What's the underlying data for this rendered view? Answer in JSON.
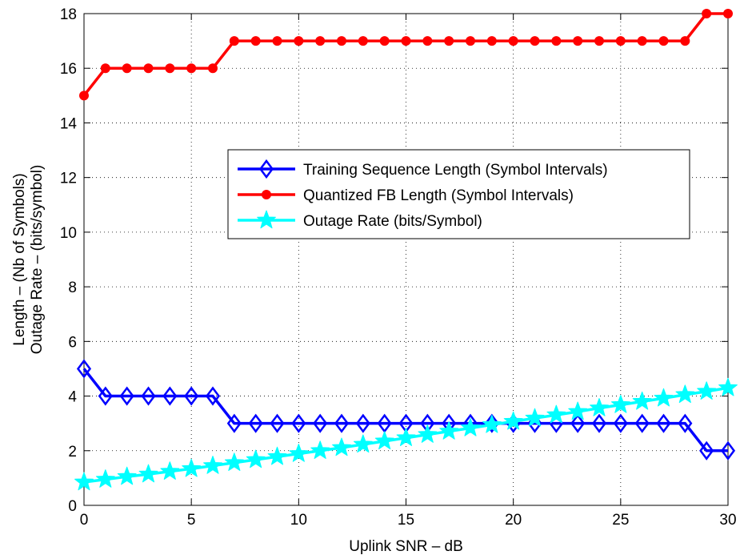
{
  "chart_data": {
    "type": "line",
    "xlabel": "Uplink SNR – dB",
    "ylabel_lines": [
      "Length – (Nb of Symbols)",
      "Outage Rate – (bits/symbol)"
    ],
    "xlim": [
      0,
      30
    ],
    "ylim": [
      0,
      18
    ],
    "xticks": [
      0,
      5,
      10,
      15,
      20,
      25,
      30
    ],
    "yticks": [
      0,
      2,
      4,
      6,
      8,
      10,
      12,
      14,
      16,
      18
    ],
    "grid": true,
    "legend_position": "center-right",
    "x": [
      0,
      1,
      2,
      3,
      4,
      5,
      6,
      7,
      8,
      9,
      10,
      11,
      12,
      13,
      14,
      15,
      16,
      17,
      18,
      19,
      20,
      21,
      22,
      23,
      24,
      25,
      26,
      27,
      28,
      29,
      30
    ],
    "series": [
      {
        "name": "Training Sequence Length (Symbol Intervals)",
        "color": "#0000ff",
        "marker": "diamond",
        "values": [
          5,
          4,
          4,
          4,
          4,
          4,
          4,
          3,
          3,
          3,
          3,
          3,
          3,
          3,
          3,
          3,
          3,
          3,
          3,
          3,
          3,
          3,
          3,
          3,
          3,
          3,
          3,
          3,
          3,
          2,
          2
        ]
      },
      {
        "name": "Quantized FB Length (Symbol Intervals)",
        "color": "#ff0000",
        "marker": "circle",
        "values": [
          15,
          16,
          16,
          16,
          16,
          16,
          16,
          17,
          17,
          17,
          17,
          17,
          17,
          17,
          17,
          17,
          17,
          17,
          17,
          17,
          17,
          17,
          17,
          17,
          17,
          17,
          17,
          17,
          17,
          18,
          18
        ]
      },
      {
        "name": "Outage Rate (bits/Symbol)",
        "color": "#00ffff",
        "marker": "star",
        "values": [
          0.85,
          0.95,
          1.05,
          1.14,
          1.24,
          1.34,
          1.45,
          1.56,
          1.67,
          1.78,
          1.89,
          2.0,
          2.11,
          2.23,
          2.35,
          2.47,
          2.59,
          2.71,
          2.83,
          2.95,
          3.07,
          3.19,
          3.31,
          3.43,
          3.56,
          3.68,
          3.8,
          3.92,
          4.05,
          4.17,
          4.3
        ]
      }
    ]
  }
}
